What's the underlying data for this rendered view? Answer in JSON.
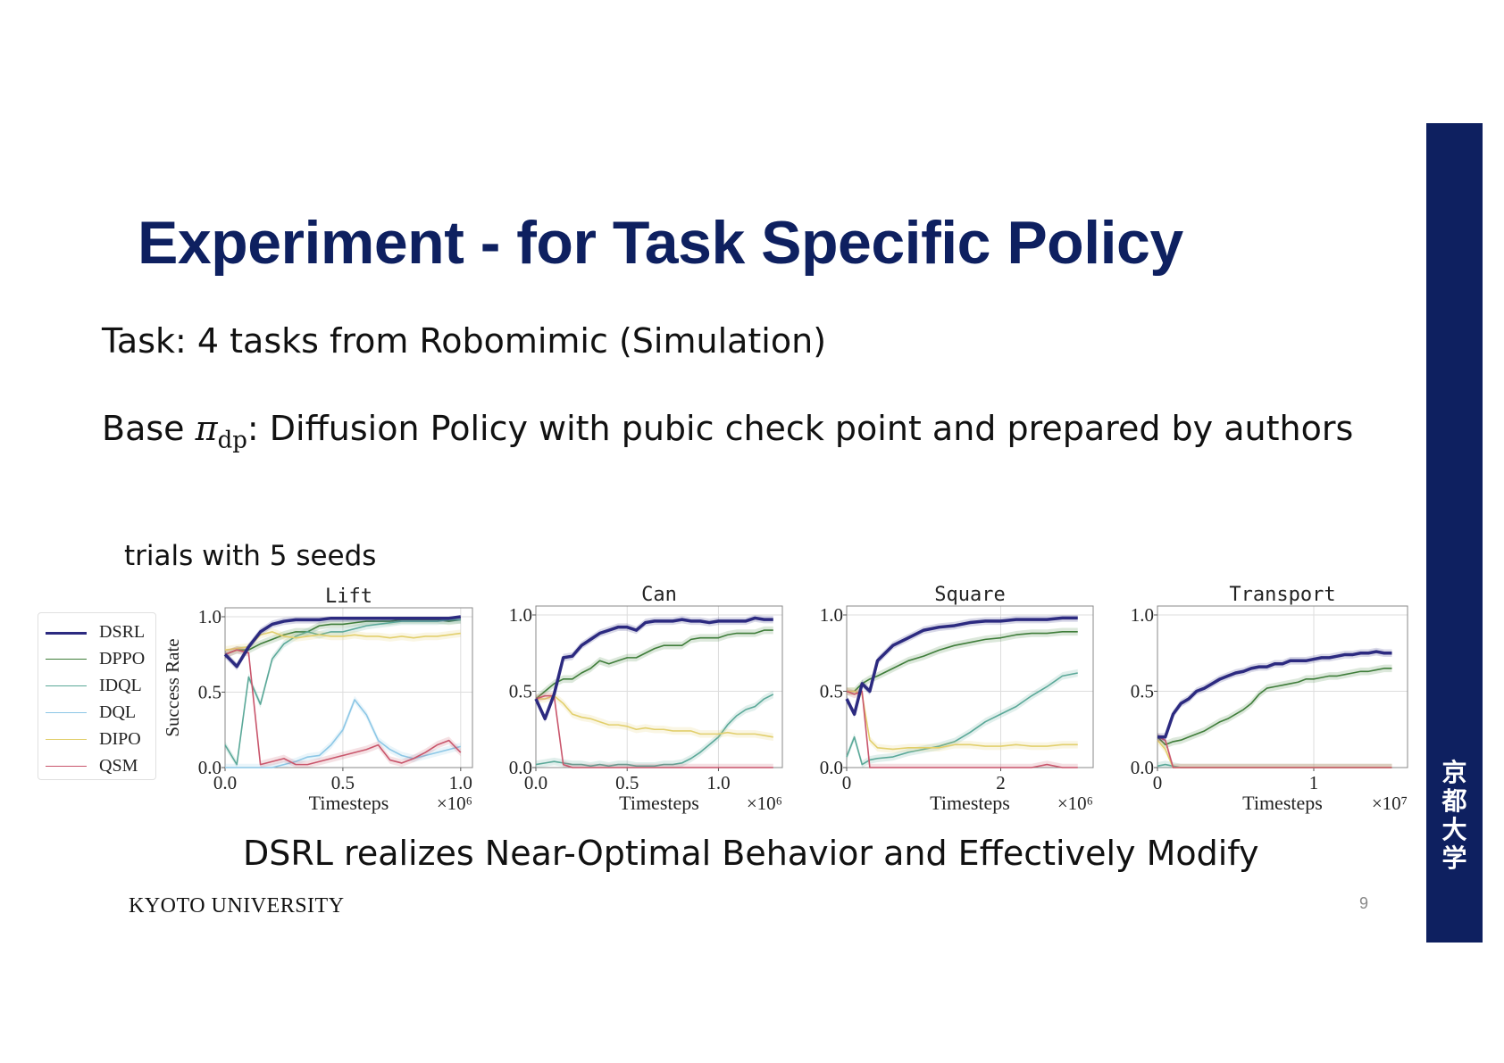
{
  "slide": {
    "title": "Experiment - for Task Specific Policy",
    "task_line": "Task: 4 tasks from Robomimic (Simulation)",
    "base_prefix": "Base ",
    "base_symbol": "π",
    "base_subscript": "dp",
    "base_suffix": ": Diffusion Policy with pubic check point and prepared by authors",
    "trials_note": "trials with 5 seeds",
    "conclusion": "DSRL realizes Near-Optimal Behavior and Effectively Modify",
    "footer_org": "KYOTO UNIVERSITY",
    "page_number": "9",
    "seal_chars": [
      "京",
      "都",
      "大",
      "学"
    ],
    "brand_color": "#0e2060"
  },
  "legend": [
    {
      "name": "DSRL",
      "color": "#2c2a80",
      "width": 3.5
    },
    {
      "name": "DPPO",
      "color": "#3f7d3a",
      "width": 1.6
    },
    {
      "name": "IDQL",
      "color": "#5aa898",
      "width": 1.6
    },
    {
      "name": "DQL",
      "color": "#8cc7e6",
      "width": 1.6
    },
    {
      "name": "DIPO",
      "color": "#e2cf6c",
      "width": 1.6
    },
    {
      "name": "QSM",
      "color": "#c9566c",
      "width": 1.6
    }
  ],
  "chart_data": [
    {
      "type": "line",
      "title": "Lift",
      "xlabel": "Timesteps",
      "ylabel": "Success Rate",
      "x_scale_label": "×10⁶",
      "xlim": [
        0,
        1.05
      ],
      "ylim": [
        0,
        1.0
      ],
      "xticks": [
        0.0,
        0.5,
        1.0
      ],
      "xtick_labels": [
        "0.0",
        "0.5",
        "1.0"
      ],
      "yticks": [
        0.0,
        0.5,
        1.0
      ],
      "ytick_labels": [
        "0.0",
        "0.5",
        "1.0"
      ],
      "grid": true,
      "x": [
        0,
        0.05,
        0.1,
        0.15,
        0.2,
        0.25,
        0.3,
        0.35,
        0.4,
        0.45,
        0.5,
        0.55,
        0.6,
        0.65,
        0.7,
        0.75,
        0.8,
        0.85,
        0.9,
        0.95,
        1.0
      ],
      "series": [
        {
          "name": "DSRL",
          "values": [
            0.75,
            0.67,
            0.8,
            0.9,
            0.95,
            0.97,
            0.98,
            0.98,
            0.98,
            0.99,
            0.99,
            0.99,
            0.99,
            0.99,
            0.99,
            0.99,
            0.99,
            0.99,
            0.99,
            0.99,
            1.0
          ]
        },
        {
          "name": "DPPO",
          "values": [
            0.75,
            0.78,
            0.78,
            0.82,
            0.85,
            0.88,
            0.9,
            0.9,
            0.94,
            0.95,
            0.95,
            0.96,
            0.97,
            0.97,
            0.97,
            0.98,
            0.98,
            0.98,
            0.98,
            0.97,
            0.98
          ]
        },
        {
          "name": "IDQL",
          "values": [
            0.15,
            0.02,
            0.6,
            0.42,
            0.72,
            0.82,
            0.87,
            0.9,
            0.88,
            0.9,
            0.9,
            0.92,
            0.94,
            0.95,
            0.96,
            0.97,
            0.97,
            0.97,
            0.97,
            0.98,
            0.98
          ]
        },
        {
          "name": "DQL",
          "values": [
            0.0,
            0.0,
            0.0,
            0.0,
            0.0,
            0.02,
            0.04,
            0.07,
            0.08,
            0.15,
            0.25,
            0.45,
            0.35,
            0.18,
            0.12,
            0.08,
            0.06,
            0.08,
            0.1,
            0.12,
            0.14
          ]
        },
        {
          "name": "DIPO",
          "values": [
            0.78,
            0.79,
            0.8,
            0.88,
            0.9,
            0.87,
            0.86,
            0.87,
            0.88,
            0.87,
            0.87,
            0.88,
            0.87,
            0.87,
            0.86,
            0.87,
            0.86,
            0.87,
            0.87,
            0.88,
            0.89
          ]
        },
        {
          "name": "QSM",
          "values": [
            0.75,
            0.78,
            0.76,
            0.02,
            0.04,
            0.06,
            0.02,
            0.02,
            0.04,
            0.06,
            0.08,
            0.1,
            0.12,
            0.15,
            0.05,
            0.03,
            0.06,
            0.1,
            0.15,
            0.18,
            0.1
          ]
        }
      ]
    },
    {
      "type": "line",
      "title": "Can",
      "xlabel": "Timesteps",
      "ylabel": "",
      "x_scale_label": "×10⁶",
      "xlim": [
        0,
        1.35
      ],
      "ylim": [
        0,
        1.0
      ],
      "xticks": [
        0.0,
        0.5,
        1.0
      ],
      "xtick_labels": [
        "0.0",
        "0.5",
        "1.0"
      ],
      "yticks": [
        0.0,
        0.5,
        1.0
      ],
      "ytick_labels": [
        "0.0",
        "0.5",
        "1.0"
      ],
      "grid": true,
      "x": [
        0,
        0.05,
        0.1,
        0.15,
        0.2,
        0.25,
        0.3,
        0.35,
        0.4,
        0.45,
        0.5,
        0.55,
        0.6,
        0.65,
        0.7,
        0.75,
        0.8,
        0.85,
        0.9,
        0.95,
        1.0,
        1.05,
        1.1,
        1.15,
        1.2,
        1.25,
        1.3
      ],
      "series": [
        {
          "name": "DSRL",
          "values": [
            0.45,
            0.32,
            0.48,
            0.72,
            0.73,
            0.8,
            0.84,
            0.88,
            0.9,
            0.92,
            0.92,
            0.9,
            0.95,
            0.96,
            0.96,
            0.96,
            0.97,
            0.96,
            0.96,
            0.95,
            0.96,
            0.96,
            0.96,
            0.96,
            0.98,
            0.97,
            0.97
          ]
        },
        {
          "name": "DPPO",
          "values": [
            0.45,
            0.5,
            0.55,
            0.58,
            0.58,
            0.62,
            0.65,
            0.7,
            0.68,
            0.7,
            0.72,
            0.72,
            0.75,
            0.78,
            0.8,
            0.8,
            0.8,
            0.84,
            0.85,
            0.85,
            0.85,
            0.87,
            0.88,
            0.88,
            0.88,
            0.9,
            0.9
          ]
        },
        {
          "name": "IDQL",
          "values": [
            0.02,
            0.03,
            0.04,
            0.03,
            0.02,
            0.02,
            0.01,
            0.02,
            0.01,
            0.02,
            0.02,
            0.01,
            0.01,
            0.01,
            0.02,
            0.02,
            0.03,
            0.06,
            0.1,
            0.15,
            0.2,
            0.28,
            0.34,
            0.38,
            0.4,
            0.45,
            0.48
          ]
        },
        {
          "name": "DIPO",
          "values": [
            0.45,
            0.45,
            0.47,
            0.42,
            0.35,
            0.33,
            0.32,
            0.3,
            0.28,
            0.28,
            0.27,
            0.25,
            0.26,
            0.25,
            0.25,
            0.24,
            0.24,
            0.24,
            0.22,
            0.22,
            0.22,
            0.23,
            0.22,
            0.22,
            0.22,
            0.21,
            0.2
          ]
        },
        {
          "name": "QSM",
          "values": [
            0.45,
            0.47,
            0.47,
            0.02,
            0.0,
            0.0,
            0.0,
            0.0,
            0.0,
            0.0,
            0.0,
            0.0,
            0.0,
            0.0,
            0.0,
            0.0,
            0.0,
            0.0,
            0.0,
            0.0,
            0.0,
            0.0,
            0.0,
            0.0,
            0.0,
            0.0,
            0.0
          ]
        }
      ]
    },
    {
      "type": "line",
      "title": "Square",
      "xlabel": "Timesteps",
      "ylabel": "",
      "x_scale_label": "×10⁶",
      "xlim": [
        0,
        3.2
      ],
      "ylim": [
        0,
        1.0
      ],
      "xticks": [
        0,
        2
      ],
      "xtick_labels": [
        "0",
        "2"
      ],
      "yticks": [
        0.0,
        0.5,
        1.0
      ],
      "ytick_labels": [
        "0.0",
        "0.5",
        "1.0"
      ],
      "grid": true,
      "x": [
        0,
        0.1,
        0.2,
        0.3,
        0.4,
        0.6,
        0.8,
        1.0,
        1.2,
        1.4,
        1.6,
        1.8,
        2.0,
        2.2,
        2.4,
        2.6,
        2.8,
        3.0
      ],
      "series": [
        {
          "name": "DSRL",
          "values": [
            0.45,
            0.35,
            0.55,
            0.5,
            0.7,
            0.8,
            0.85,
            0.9,
            0.92,
            0.93,
            0.95,
            0.96,
            0.96,
            0.97,
            0.97,
            0.97,
            0.98,
            0.98
          ]
        },
        {
          "name": "DPPO",
          "values": [
            0.5,
            0.5,
            0.55,
            0.58,
            0.6,
            0.65,
            0.7,
            0.73,
            0.77,
            0.8,
            0.82,
            0.84,
            0.85,
            0.87,
            0.88,
            0.88,
            0.89,
            0.89
          ]
        },
        {
          "name": "IDQL",
          "values": [
            0.07,
            0.2,
            0.02,
            0.05,
            0.06,
            0.07,
            0.1,
            0.12,
            0.14,
            0.17,
            0.23,
            0.3,
            0.35,
            0.4,
            0.47,
            0.53,
            0.6,
            0.62
          ]
        },
        {
          "name": "DIPO",
          "values": [
            0.5,
            0.5,
            0.48,
            0.18,
            0.13,
            0.12,
            0.13,
            0.13,
            0.13,
            0.15,
            0.15,
            0.14,
            0.14,
            0.15,
            0.14,
            0.14,
            0.15,
            0.15
          ]
        },
        {
          "name": "QSM",
          "values": [
            0.5,
            0.48,
            0.5,
            0.0,
            0.0,
            0.0,
            0.0,
            0.0,
            0.0,
            0.0,
            0.0,
            0.0,
            0.0,
            0.0,
            0.0,
            0.02,
            0.0,
            0.0
          ]
        }
      ]
    },
    {
      "type": "line",
      "title": "Transport",
      "xlabel": "Timesteps",
      "ylabel": "",
      "x_scale_label": "×10⁷",
      "xlim": [
        0,
        1.6
      ],
      "ylim": [
        0,
        1.0
      ],
      "xticks": [
        0,
        1
      ],
      "xtick_labels": [
        "0",
        "1"
      ],
      "yticks": [
        0.0,
        0.5,
        1.0
      ],
      "ytick_labels": [
        "0.0",
        "0.5",
        "1.0"
      ],
      "grid": true,
      "x": [
        0,
        0.05,
        0.1,
        0.15,
        0.2,
        0.25,
        0.3,
        0.35,
        0.4,
        0.45,
        0.5,
        0.55,
        0.6,
        0.65,
        0.7,
        0.75,
        0.8,
        0.85,
        0.9,
        0.95,
        1.0,
        1.05,
        1.1,
        1.15,
        1.2,
        1.25,
        1.3,
        1.35,
        1.4,
        1.45,
        1.5
      ],
      "series": [
        {
          "name": "DSRL",
          "values": [
            0.2,
            0.2,
            0.35,
            0.42,
            0.45,
            0.5,
            0.52,
            0.55,
            0.58,
            0.6,
            0.62,
            0.63,
            0.65,
            0.66,
            0.66,
            0.68,
            0.68,
            0.7,
            0.7,
            0.7,
            0.71,
            0.72,
            0.72,
            0.73,
            0.74,
            0.74,
            0.75,
            0.75,
            0.76,
            0.75,
            0.75
          ]
        },
        {
          "name": "DPPO",
          "values": [
            0.2,
            0.15,
            0.17,
            0.18,
            0.2,
            0.22,
            0.24,
            0.27,
            0.3,
            0.32,
            0.35,
            0.38,
            0.42,
            0.48,
            0.52,
            0.53,
            0.54,
            0.55,
            0.56,
            0.58,
            0.58,
            0.59,
            0.6,
            0.6,
            0.61,
            0.62,
            0.63,
            0.63,
            0.64,
            0.65,
            0.65
          ]
        },
        {
          "name": "IDQL",
          "values": [
            0.01,
            0.02,
            0.01,
            0.0,
            0.0,
            0.0,
            0.0,
            0.0,
            0.0,
            0.0,
            0.0,
            0.0,
            0.0,
            0.0,
            0.0,
            0.0,
            0.0,
            0.0,
            0.0,
            0.0,
            0.0,
            0.0,
            0.0,
            0.0,
            0.0,
            0.0,
            0.0,
            0.0,
            0.0,
            0.0,
            0.0
          ]
        },
        {
          "name": "DIPO",
          "values": [
            0.18,
            0.12,
            0.0,
            0.0,
            0.0,
            0.0,
            0.0,
            0.0,
            0.0,
            0.0,
            0.0,
            0.0,
            0.0,
            0.0,
            0.0,
            0.0,
            0.0,
            0.0,
            0.0,
            0.0,
            0.0,
            0.0,
            0.0,
            0.0,
            0.0,
            0.0,
            0.0,
            0.0,
            0.0,
            0.0,
            0.0
          ]
        },
        {
          "name": "QSM",
          "values": [
            0.2,
            0.18,
            0.0,
            0.0,
            0.0,
            0.0,
            0.0,
            0.0,
            0.0,
            0.0,
            0.0,
            0.0,
            0.0,
            0.0,
            0.0,
            0.0,
            0.0,
            0.0,
            0.0,
            0.0,
            0.0,
            0.0,
            0.0,
            0.0,
            0.0,
            0.0,
            0.0,
            0.0,
            0.0,
            0.0,
            0.0
          ]
        }
      ]
    }
  ]
}
